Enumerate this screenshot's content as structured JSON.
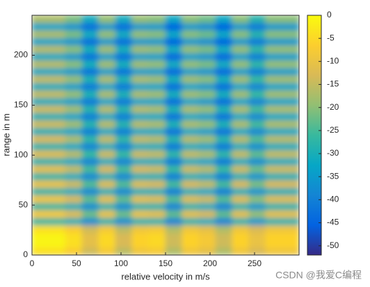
{
  "chart_data": {
    "type": "heatmap",
    "xlabel": "relative velocity in m/s",
    "ylabel": "range in m",
    "xlim": [
      0,
      300
    ],
    "ylim": [
      0,
      240
    ],
    "xticks": [
      0,
      50,
      100,
      150,
      200,
      250
    ],
    "yticks": [
      0,
      50,
      100,
      150,
      200
    ],
    "clim": [
      -52,
      0
    ],
    "cticks": [
      0,
      -5,
      -10,
      -15,
      -20,
      -25,
      -30,
      -35,
      -40,
      -45,
      -50
    ],
    "colormap": [
      "#352a87",
      "#0363e1",
      "#1485d4",
      "#06a7c6",
      "#38b99e",
      "#92bf73",
      "#d9ba56",
      "#fcce2e",
      "#f9fb0e"
    ],
    "x": [
      9.375,
      28.125,
      46.875,
      65.625,
      84.375,
      103.125,
      121.875,
      140.625,
      159.375,
      178.125,
      196.875,
      215.625,
      234.375,
      253.125,
      271.875,
      290.625
    ],
    "y": [
      3.75,
      11.25,
      18.75,
      26.25,
      33.75,
      41.25,
      48.75,
      56.25,
      63.75,
      71.25,
      78.75,
      86.25,
      93.75,
      101.25,
      108.75,
      116.25,
      123.75,
      131.25,
      138.75,
      146.25,
      153.75,
      161.25,
      168.75,
      176.25,
      183.75,
      191.25,
      198.75,
      206.25,
      213.75,
      221.25,
      228.75,
      236.25
    ],
    "values": [
      [
        -4,
        -4,
        -7,
        -14,
        -8,
        -16,
        -9,
        -8,
        -17,
        -9,
        -11,
        -17,
        -9,
        -13,
        -9,
        -9
      ],
      [
        -1,
        -1,
        -4,
        -11,
        -5,
        -13,
        -6,
        -5,
        -14,
        -6,
        -8,
        -14,
        -6,
        -10,
        -6,
        -6
      ],
      [
        -1,
        -1,
        -4,
        -11,
        -5,
        -13,
        -6,
        -5,
        -14,
        -6,
        -8,
        -14,
        -6,
        -10,
        -6,
        -6
      ],
      [
        -4,
        -4,
        -7,
        -14,
        -8,
        -16,
        -9,
        -8,
        -17,
        -9,
        -11,
        -17,
        -9,
        -13,
        -9,
        -9
      ],
      [
        -27,
        -27,
        -30,
        -37,
        -29,
        -37,
        -29,
        -29,
        -39,
        -29,
        -31,
        -39,
        -29,
        -35,
        -29,
        -29
      ],
      [
        -8,
        -8,
        -12,
        -22,
        -10,
        -22,
        -10,
        -11,
        -23,
        -11,
        -13,
        -23,
        -11,
        -19,
        -11,
        -11
      ],
      [
        -27,
        -27,
        -30,
        -37,
        -29,
        -37,
        -29,
        -29,
        -39,
        -29,
        -31,
        -39,
        -29,
        -35,
        -29,
        -29
      ],
      [
        -9,
        -9,
        -13,
        -23,
        -11,
        -23,
        -11,
        -12,
        -24,
        -12,
        -14,
        -24,
        -12,
        -20,
        -12,
        -12
      ],
      [
        -28,
        -28,
        -31,
        -38,
        -30,
        -38,
        -30,
        -30,
        -40,
        -30,
        -32,
        -40,
        -30,
        -36,
        -30,
        -30
      ],
      [
        -10,
        -10,
        -14,
        -24,
        -12,
        -24,
        -12,
        -13,
        -25,
        -13,
        -15,
        -25,
        -13,
        -21,
        -13,
        -13
      ],
      [
        -28,
        -28,
        -31,
        -38,
        -30,
        -38,
        -30,
        -30,
        -40,
        -30,
        -32,
        -40,
        -30,
        -36,
        -30,
        -30
      ],
      [
        -11,
        -11,
        -15,
        -25,
        -13,
        -25,
        -13,
        -14,
        -26,
        -14,
        -16,
        -26,
        -14,
        -22,
        -14,
        -14
      ],
      [
        -29,
        -29,
        -32,
        -39,
        -31,
        -39,
        -31,
        -31,
        -41,
        -31,
        -33,
        -41,
        -31,
        -37,
        -31,
        -31
      ],
      [
        -12,
        -12,
        -16,
        -26,
        -14,
        -26,
        -14,
        -15,
        -27,
        -15,
        -17,
        -27,
        -15,
        -23,
        -15,
        -15
      ],
      [
        -29,
        -29,
        -32,
        -39,
        -31,
        -39,
        -31,
        -31,
        -41,
        -31,
        -33,
        -41,
        -31,
        -37,
        -31,
        -31
      ],
      [
        -13,
        -13,
        -17,
        -27,
        -15,
        -27,
        -15,
        -16,
        -28,
        -16,
        -18,
        -28,
        -16,
        -24,
        -16,
        -16
      ],
      [
        -30,
        -30,
        -33,
        -40,
        -32,
        -40,
        -32,
        -32,
        -42,
        -32,
        -34,
        -42,
        -32,
        -38,
        -32,
        -32
      ],
      [
        -14,
        -14,
        -18,
        -28,
        -16,
        -28,
        -16,
        -17,
        -29,
        -17,
        -19,
        -29,
        -17,
        -25,
        -17,
        -17
      ],
      [
        -30,
        -30,
        -33,
        -40,
        -32,
        -40,
        -32,
        -32,
        -42,
        -32,
        -34,
        -42,
        -32,
        -38,
        -32,
        -32
      ],
      [
        -14,
        -14,
        -18,
        -28,
        -16,
        -28,
        -16,
        -17,
        -29,
        -17,
        -19,
        -29,
        -17,
        -25,
        -17,
        -17
      ],
      [
        -31,
        -31,
        -34,
        -41,
        -33,
        -41,
        -33,
        -33,
        -43,
        -33,
        -35,
        -43,
        -33,
        -39,
        -33,
        -33
      ],
      [
        -15,
        -15,
        -19,
        -29,
        -17,
        -29,
        -17,
        -18,
        -30,
        -18,
        -20,
        -30,
        -18,
        -26,
        -18,
        -18
      ],
      [
        -31,
        -31,
        -34,
        -41,
        -33,
        -41,
        -33,
        -33,
        -43,
        -33,
        -35,
        -43,
        -33,
        -39,
        -33,
        -33
      ],
      [
        -15,
        -15,
        -19,
        -29,
        -17,
        -29,
        -17,
        -18,
        -30,
        -18,
        -20,
        -30,
        -18,
        -26,
        -18,
        -18
      ],
      [
        -32,
        -32,
        -35,
        -42,
        -34,
        -42,
        -34,
        -34,
        -44,
        -34,
        -36,
        -44,
        -34,
        -40,
        -34,
        -34
      ],
      [
        -16,
        -16,
        -20,
        -30,
        -18,
        -30,
        -18,
        -19,
        -31,
        -19,
        -21,
        -31,
        -19,
        -27,
        -19,
        -19
      ],
      [
        -32,
        -32,
        -35,
        -42,
        -34,
        -42,
        -34,
        -34,
        -44,
        -34,
        -36,
        -44,
        -34,
        -40,
        -34,
        -34
      ],
      [
        -16,
        -16,
        -20,
        -30,
        -18,
        -30,
        -18,
        -19,
        -31,
        -19,
        -21,
        -31,
        -19,
        -27,
        -19,
        -19
      ],
      [
        -33,
        -33,
        -36,
        -43,
        -35,
        -43,
        -35,
        -35,
        -45,
        -35,
        -37,
        -45,
        -35,
        -41,
        -35,
        -35
      ],
      [
        -17,
        -17,
        -21,
        -31,
        -19,
        -31,
        -19,
        -20,
        -32,
        -20,
        -22,
        -32,
        -20,
        -28,
        -20,
        -20
      ],
      [
        -33,
        -33,
        -36,
        -43,
        -35,
        -43,
        -35,
        -35,
        -45,
        -35,
        -37,
        -45,
        -35,
        -41,
        -35,
        -35
      ],
      [
        -17,
        -17,
        -21,
        -31,
        -19,
        -31,
        -19,
        -20,
        -32,
        -20,
        -22,
        -32,
        -20,
        -28,
        -20,
        -20
      ]
    ],
    "watermark": "CSDN @我爱C编程"
  }
}
